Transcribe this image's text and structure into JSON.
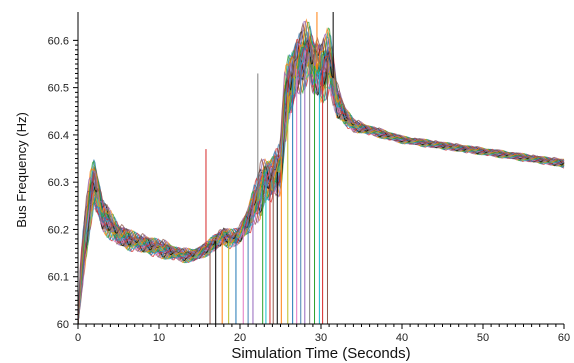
{
  "chart_data": {
    "type": "line",
    "title": "",
    "xlabel": "Simulation Time (Seconds)",
    "ylabel": "Bus Frequency (Hz)",
    "xlim": [
      0,
      60
    ],
    "ylim": [
      60,
      60.66
    ],
    "xticks": [
      "0",
      "10",
      "20",
      "30",
      "40",
      "50",
      "60"
    ],
    "yticks": [
      "60",
      "60.1",
      "60.2",
      "60.3",
      "60.4",
      "60.5",
      "60.6"
    ],
    "grid": false,
    "legend": "none",
    "series_count_note": "many overlapping bus-frequency traces",
    "envelope": {
      "x": [
        0,
        0.3,
        0.6,
        1,
        1.5,
        2,
        2.5,
        3,
        4,
        5,
        6,
        7,
        8,
        9,
        10,
        11,
        12,
        13,
        14,
        15,
        16,
        17,
        18,
        19,
        20,
        21,
        22,
        22.5,
        23,
        24,
        25,
        25.5,
        26,
        27,
        28,
        28.5,
        29,
        30,
        31,
        31.5,
        32,
        33,
        34,
        35,
        36,
        38,
        40,
        42,
        44,
        46,
        48,
        50,
        52,
        54,
        56,
        58,
        60
      ],
      "mid": [
        60.0,
        60.08,
        60.14,
        60.2,
        60.26,
        60.3,
        60.27,
        60.23,
        60.21,
        60.19,
        60.18,
        60.175,
        60.17,
        60.165,
        60.16,
        60.155,
        60.15,
        60.145,
        60.145,
        60.15,
        60.16,
        60.175,
        60.185,
        60.18,
        60.19,
        60.22,
        60.26,
        60.28,
        60.3,
        60.31,
        60.33,
        60.45,
        60.5,
        60.54,
        60.57,
        60.58,
        60.55,
        60.53,
        60.56,
        60.52,
        60.47,
        60.44,
        60.42,
        60.415,
        60.41,
        60.4,
        60.39,
        60.385,
        60.38,
        60.375,
        60.37,
        60.365,
        60.36,
        60.355,
        60.35,
        60.345,
        60.34
      ],
      "spread": [
        0.0,
        0.05,
        0.06,
        0.06,
        0.06,
        0.06,
        0.05,
        0.04,
        0.03,
        0.025,
        0.025,
        0.02,
        0.02,
        0.02,
        0.02,
        0.02,
        0.015,
        0.015,
        0.015,
        0.015,
        0.015,
        0.02,
        0.02,
        0.02,
        0.02,
        0.03,
        0.05,
        0.06,
        0.05,
        0.05,
        0.06,
        0.08,
        0.08,
        0.07,
        0.07,
        0.06,
        0.07,
        0.07,
        0.07,
        0.06,
        0.04,
        0.02,
        0.015,
        0.012,
        0.01,
        0.01,
        0.008,
        0.008,
        0.008,
        0.008,
        0.008,
        0.008,
        0.008,
        0.008,
        0.008,
        0.008,
        0.01
      ]
    },
    "spikes": [
      {
        "x": 15.8,
        "y": 60.37
      },
      {
        "x": 16.3,
        "y": 60.0
      },
      {
        "x": 17.0,
        "y": 60.0
      },
      {
        "x": 17.8,
        "y": 60.0
      },
      {
        "x": 18.6,
        "y": 60.0
      },
      {
        "x": 19.5,
        "y": 60.0
      },
      {
        "x": 20.4,
        "y": 60.0
      },
      {
        "x": 21.0,
        "y": 60.0
      },
      {
        "x": 21.6,
        "y": 60.0
      },
      {
        "x": 22.2,
        "y": 60.53
      },
      {
        "x": 22.8,
        "y": 60.0
      },
      {
        "x": 23.2,
        "y": 60.0
      },
      {
        "x": 23.7,
        "y": 60.0
      },
      {
        "x": 24.1,
        "y": 60.0
      },
      {
        "x": 24.6,
        "y": 60.0
      },
      {
        "x": 25.1,
        "y": 60.0
      },
      {
        "x": 25.9,
        "y": 60.0
      },
      {
        "x": 26.5,
        "y": 60.0
      },
      {
        "x": 27.0,
        "y": 60.0
      },
      {
        "x": 27.5,
        "y": 60.0
      },
      {
        "x": 28.0,
        "y": 60.0
      },
      {
        "x": 28.6,
        "y": 60.0
      },
      {
        "x": 29.2,
        "y": 60.0
      },
      {
        "x": 29.8,
        "y": 60.0
      },
      {
        "x": 30.2,
        "y": 60.0
      },
      {
        "x": 30.8,
        "y": 60.0
      },
      {
        "x": 31.5,
        "y": 60.66
      },
      {
        "x": 29.5,
        "y": 60.66
      }
    ],
    "colors": [
      "#d62728",
      "#1f77b4",
      "#2ca02c",
      "#ff7f0e",
      "#9467bd",
      "#8c564b",
      "#e377c2",
      "#17becf",
      "#bcbd22",
      "#7f7f7f",
      "#000000",
      "#4682b4"
    ]
  }
}
